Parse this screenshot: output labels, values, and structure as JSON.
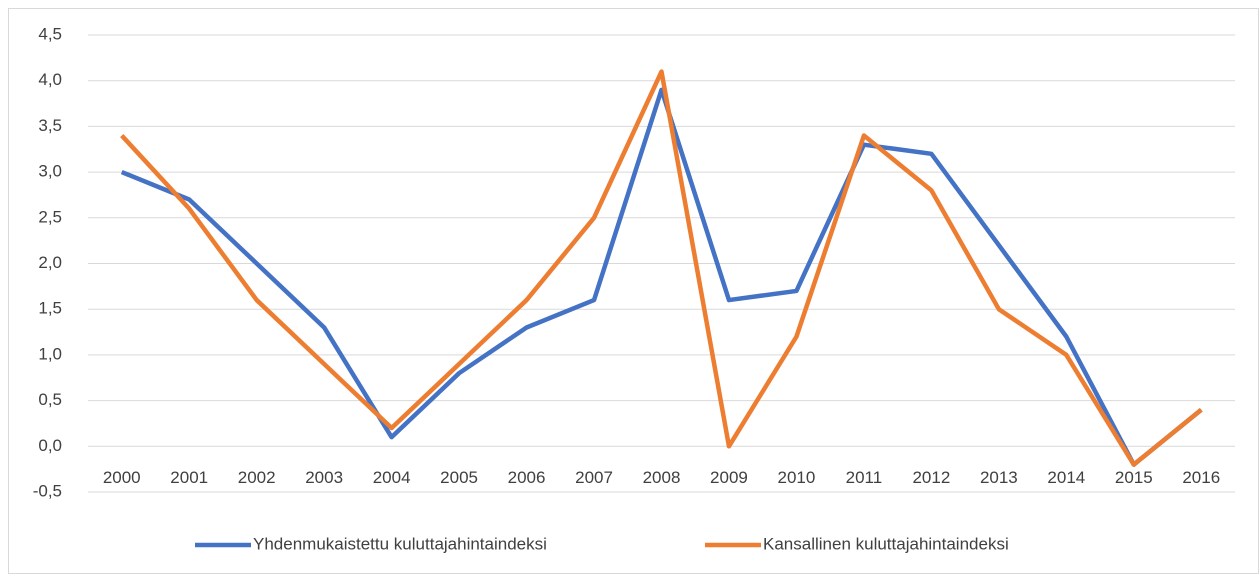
{
  "chart_data": {
    "type": "line",
    "categories": [
      "2000",
      "2001",
      "2002",
      "2003",
      "2004",
      "2005",
      "2006",
      "2007",
      "2008",
      "2009",
      "2010",
      "2011",
      "2012",
      "2013",
      "2014",
      "2015",
      "2016"
    ],
    "series": [
      {
        "name": "Yhdenmukaistettu kuluttajahintaindeksi",
        "color": "#4472c4",
        "values": [
          3.0,
          2.7,
          2.0,
          1.3,
          0.1,
          0.8,
          1.3,
          1.6,
          3.9,
          1.6,
          1.7,
          3.3,
          3.2,
          2.2,
          1.2,
          -0.2,
          0.4
        ]
      },
      {
        "name": "Kansallinen kuluttajahintaindeksi",
        "color": "#ed7d31",
        "values": [
          3.4,
          2.6,
          1.6,
          0.9,
          0.2,
          0.9,
          1.6,
          2.5,
          4.1,
          0.0,
          1.2,
          3.4,
          2.8,
          1.5,
          1.0,
          -0.2,
          0.4
        ]
      }
    ],
    "ylim": [
      -0.5,
      4.5
    ],
    "yticks": [
      {
        "value": -0.5,
        "label": "-0,5"
      },
      {
        "value": 0,
        "label": "0,0"
      },
      {
        "value": 0.5,
        "label": "0,5"
      },
      {
        "value": 1.0,
        "label": "1,0"
      },
      {
        "value": 1.5,
        "label": "1,5"
      },
      {
        "value": 2.0,
        "label": "2,0"
      },
      {
        "value": 2.5,
        "label": "2,5"
      },
      {
        "value": 3.0,
        "label": "3,0"
      },
      {
        "value": 3.5,
        "label": "3,5"
      },
      {
        "value": 4.0,
        "label": "4,0"
      },
      {
        "value": 4.5,
        "label": "4,5"
      }
    ],
    "grid": true,
    "legend": "bottom"
  }
}
